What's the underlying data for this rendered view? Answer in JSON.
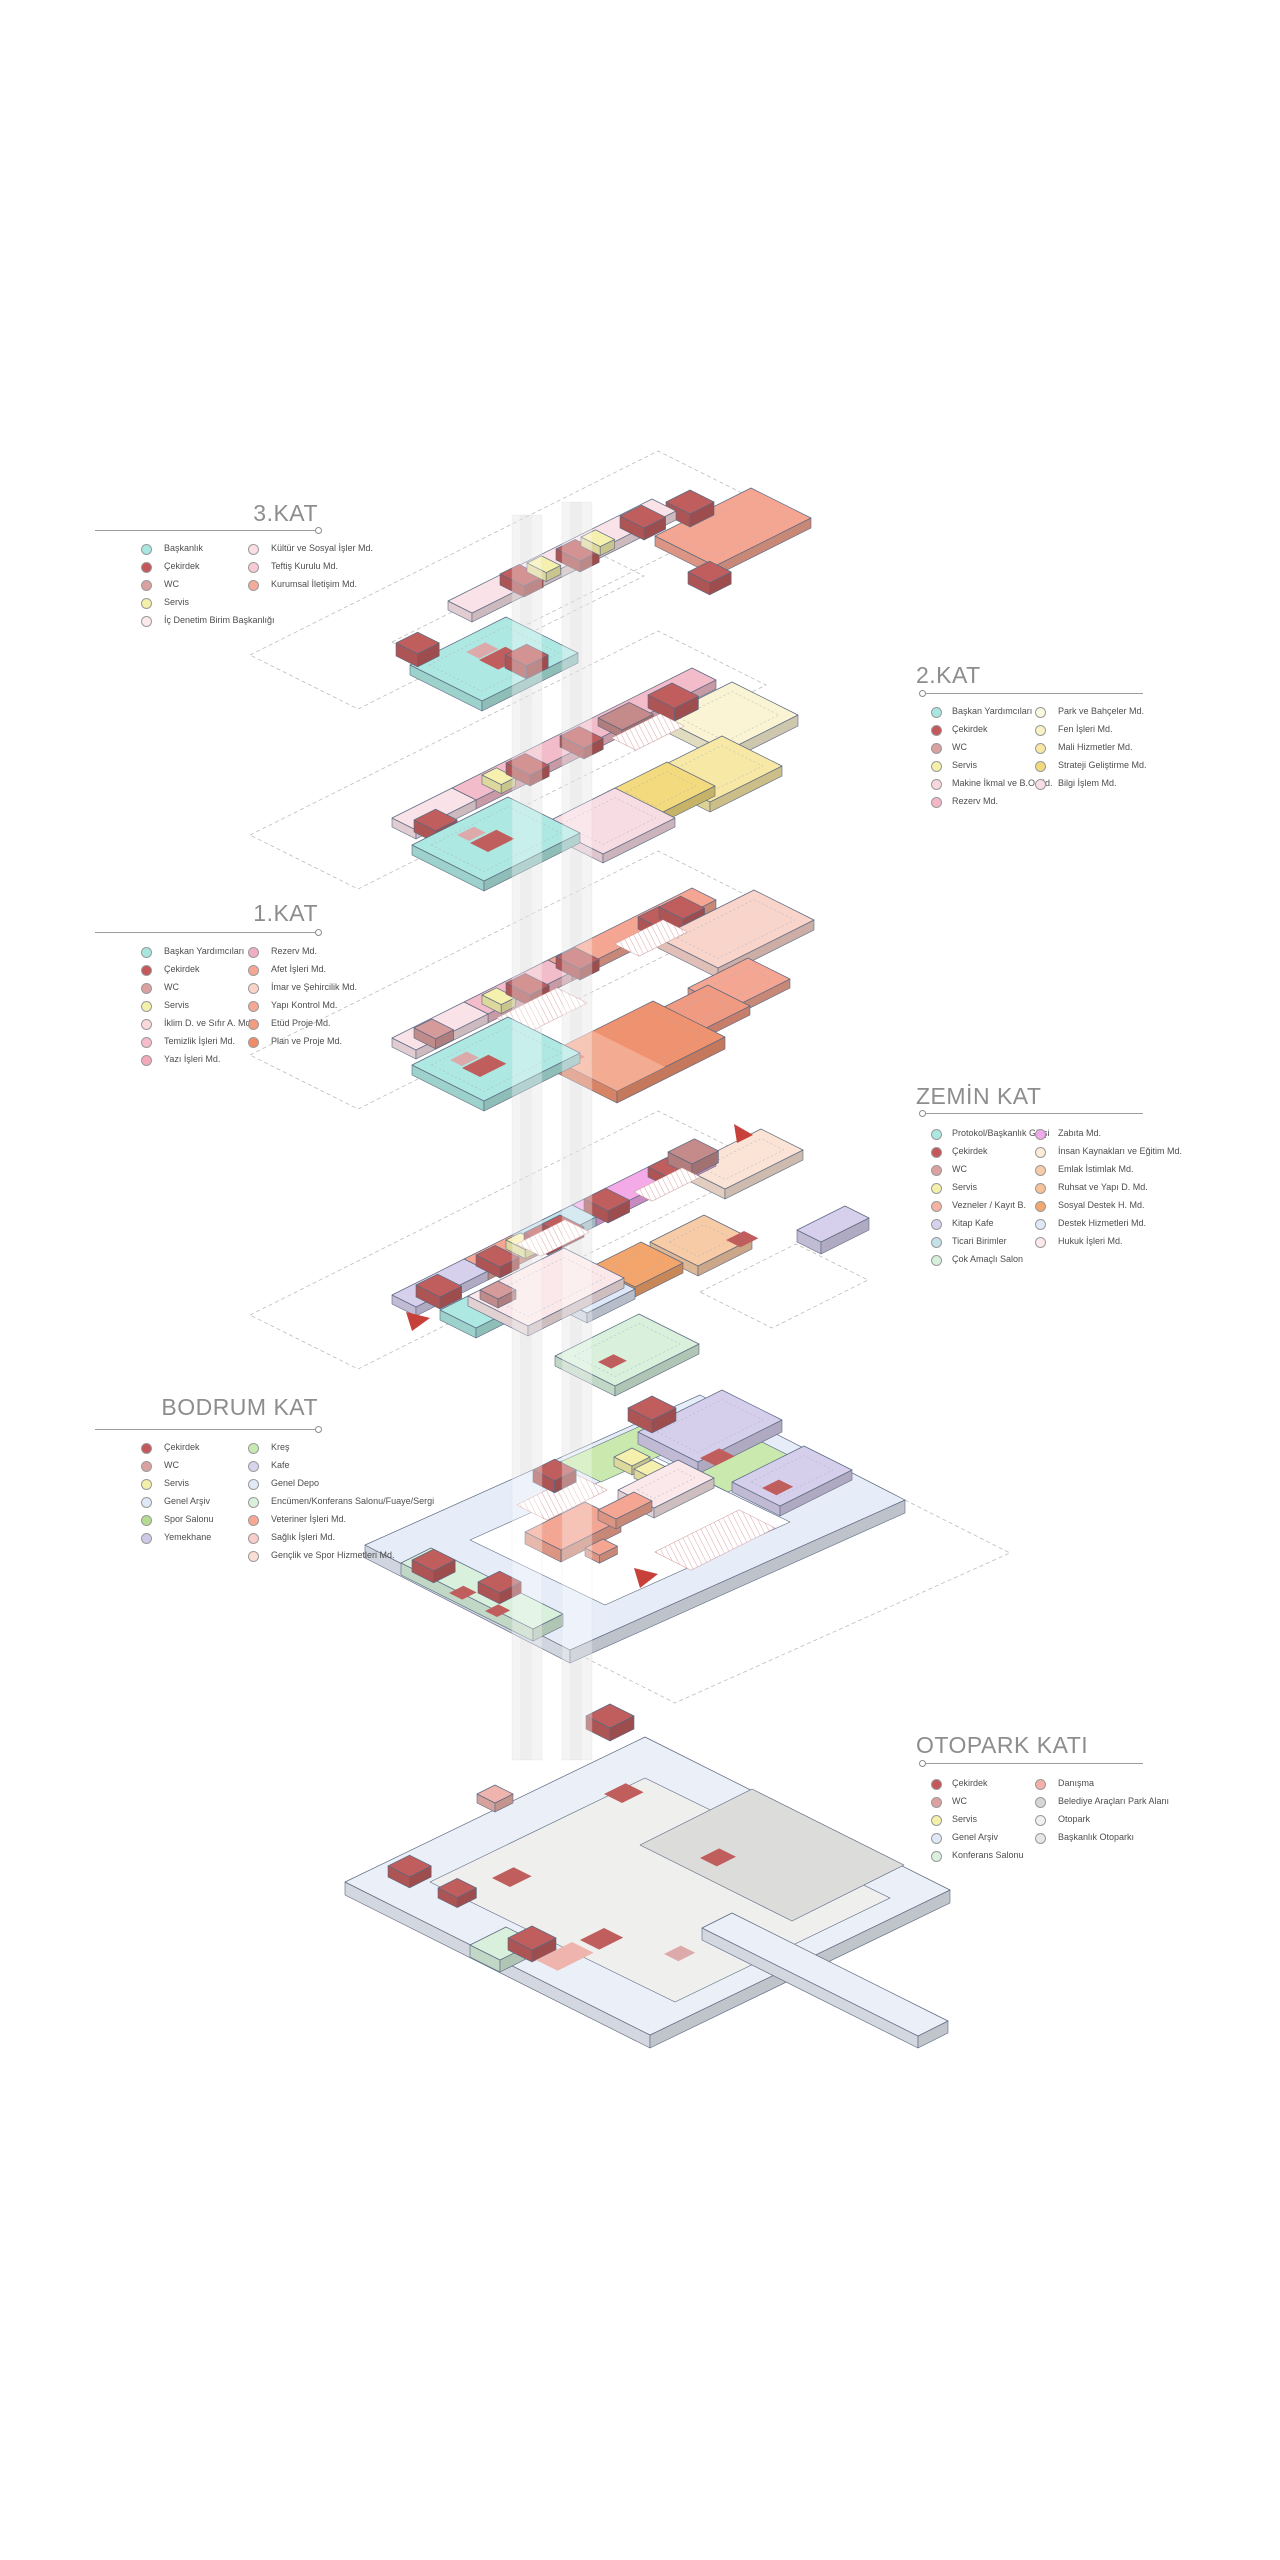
{
  "page": {
    "background": "#ffffff"
  },
  "drawing": {
    "plate_stroke": "#5b6880",
    "dash_color": "#bcbcbc",
    "shaft_color": "#e2e2e2",
    "stair_line_color": "#c9908f"
  },
  "markers": {
    "entrance_triangle_color": "#c8403a"
  },
  "palette": {
    "core": "#c05e5e",
    "wc": "#d59a9a",
    "wcflat": "#dcaaaa",
    "servis": "#f5f0ad",
    "teal": "#aee8e2",
    "palepink": "#f9e3e8",
    "pink": "#f3bcca",
    "pinkplate": "#f8dce4",
    "salmon2": "#f4a692",
    "salmon3": "#f19a82",
    "paleyellow": "#faf3d4",
    "yellow": "#f7e8a6",
    "dyellow": "#f3da7e",
    "plan": "#ef9270",
    "planlight": "#f3ab92",
    "planmark": "#e07f5c",
    "imar": "#f9d4ca",
    "lav": "#d7d0ec",
    "lav2": "#d5cfec",
    "lblue": "#c3e1eb",
    "magenta": "#f3aae6",
    "insan": "#fbe4d5",
    "emlak": "#f7cba6",
    "sosyal": "#f3a56c",
    "destek": "#dfe8f6",
    "hukukpale": "#fbe8ea",
    "mint": "#d8f0dc",
    "green1": "#c9e9ae",
    "ringblue": "#e7edf8",
    "ringblue2": "#eaeff8",
    "gray1": "#efefed",
    "gray2": "#dcdcda",
    "danis": "#eeb4ad",
    "makine": "#c58b8b",
    "white": "#ffffff"
  },
  "floors": [
    {
      "id": "kat3",
      "title": "3.KAT",
      "col1": [
        {
          "label": "Başkanlık",
          "color": "#a9e6df"
        },
        {
          "label": "Çekirdek",
          "color": "#c4575a"
        },
        {
          "label": "WC",
          "color": "#dba0a0"
        },
        {
          "label": "Servis",
          "color": "#f4efa9"
        },
        {
          "label": "İç Denetim Birim Başkanlığı",
          "color": "#fbe9ec"
        }
      ],
      "col2": [
        {
          "label": "Kültür ve Sosyal İşler Md.",
          "color": "#fbdfe4"
        },
        {
          "label": "Teftiş Kurulu Md.",
          "color": "#f9c9d4"
        },
        {
          "label": "Kurumsal İletişim Md.",
          "color": "#f6aa9b"
        }
      ]
    },
    {
      "id": "kat2",
      "title": "2.KAT",
      "col1": [
        {
          "label": "Başkan Yardımcıları",
          "color": "#a9e6df"
        },
        {
          "label": "Çekirdek",
          "color": "#c4575a"
        },
        {
          "label": "WC",
          "color": "#dba0a0"
        },
        {
          "label": "Servis",
          "color": "#f4efa9"
        },
        {
          "label": "Makine İkmal ve B.O.Md.",
          "color": "#f8d7de"
        },
        {
          "label": "Rezerv Md.",
          "color": "#f3b7c6"
        }
      ],
      "col2": [
        {
          "label": "Park ve Bahçeler Md.",
          "color": "#fbf8e0"
        },
        {
          "label": "Fen İşleri Md.",
          "color": "#f9f2c8"
        },
        {
          "label": "Mali Hizmetler Md.",
          "color": "#f7e7a5"
        },
        {
          "label": "Strateji Geliştirme Md.",
          "color": "#f2d97d"
        },
        {
          "label": "Bilgi İşlem Md.",
          "color": "#fadee5"
        }
      ]
    },
    {
      "id": "kat1",
      "title": "1.KAT",
      "col1": [
        {
          "label": "Başkan Yardımcıları",
          "color": "#a9e6df"
        },
        {
          "label": "Çekirdek",
          "color": "#c4575a"
        },
        {
          "label": "WC",
          "color": "#dba0a0"
        },
        {
          "label": "Servis",
          "color": "#f4efa9"
        },
        {
          "label": "İklim D. ve Sıfır A. Md.",
          "color": "#fbd8dd"
        },
        {
          "label": "Temizlik İşleri Md.",
          "color": "#f7bcca"
        },
        {
          "label": "Yazı İşleri Md.",
          "color": "#f4a9b9"
        }
      ],
      "col2": [
        {
          "label": "Rezerv Md.",
          "color": "#f0aec6"
        },
        {
          "label": "Afet İşleri Md.",
          "color": "#f5a791"
        },
        {
          "label": "İmar ve Şehircilik Md.",
          "color": "#fbd3c8"
        },
        {
          "label": "Yapı Kontrol Md.",
          "color": "#f5a894"
        },
        {
          "label": "Etüd Proje Md.",
          "color": "#f39b80"
        },
        {
          "label": "Plan ve Proje Md.",
          "color": "#f08d68"
        }
      ]
    },
    {
      "id": "zemin",
      "title": "ZEMİN KAT",
      "col1": [
        {
          "label": "Protokol/Başkanlık Girişi",
          "color": "#ace8e0"
        },
        {
          "label": "Çekirdek",
          "color": "#c4575a"
        },
        {
          "label": "WC",
          "color": "#dba0a0"
        },
        {
          "label": "Servis",
          "color": "#f4efa9"
        },
        {
          "label": "Vezneler / Kayıt B.",
          "color": "#f6b2a3"
        },
        {
          "label": "Kitap Kafe",
          "color": "#d8d1ed"
        },
        {
          "label": "Ticari Birimler",
          "color": "#c4e1ea"
        },
        {
          "label": "Çok Amaçlı Salon",
          "color": "#d7f0dc"
        }
      ],
      "col2": [
        {
          "label": "Zabıta Md.",
          "color": "#f2a8ec"
        },
        {
          "label": "İnsan Kaynakları ve Eğitim Md.",
          "color": "#fcecd8"
        },
        {
          "label": "Emlak İstimlak Md.",
          "color": "#f8cba8"
        },
        {
          "label": "Ruhsat ve Yapı D. Md.",
          "color": "#f7c295"
        },
        {
          "label": "Sosyal Destek H. Md.",
          "color": "#f2a76e"
        },
        {
          "label": "Destek Hizmetleri Md.",
          "color": "#dfe8f6"
        },
        {
          "label": "Hukuk İşleri Md.",
          "color": "#fbe9eb"
        }
      ]
    },
    {
      "id": "bodrum",
      "title": "BODRUM KAT",
      "col1": [
        {
          "label": "Çekirdek",
          "color": "#c4575a"
        },
        {
          "label": "WC",
          "color": "#dba0a0"
        },
        {
          "label": "Servis",
          "color": "#f4efa9"
        },
        {
          "label": "Genel Arşiv",
          "color": "#dfe8f6"
        },
        {
          "label": "Spor Salonu",
          "color": "#b5db92"
        },
        {
          "label": "Yemekhane",
          "color": "#cfc9e9"
        }
      ],
      "col2": [
        {
          "label": "Kreş",
          "color": "#c7eab2"
        },
        {
          "label": "Kafe",
          "color": "#d9d3ee"
        },
        {
          "label": "Genel Depo",
          "color": "#e2eaf7"
        },
        {
          "label": "Encümen/Konferans Salonu/Fuaye/Sergi",
          "color": "#d9f0dd"
        },
        {
          "label": "Veteriner İşleri Md.",
          "color": "#f7a894"
        },
        {
          "label": "Sağlık İşleri Md.",
          "color": "#f9cdc9"
        },
        {
          "label": "Gençlik ve Spor Hizmetleri Md.",
          "color": "#fbded6"
        }
      ]
    },
    {
      "id": "otopark",
      "title": "OTOPARK KATI",
      "col1": [
        {
          "label": "Çekirdek",
          "color": "#c4575a"
        },
        {
          "label": "WC",
          "color": "#dba0a0"
        },
        {
          "label": "Servis",
          "color": "#f4efa9"
        },
        {
          "label": "Genel Arşiv",
          "color": "#dfe8f6"
        },
        {
          "label": "Konferans Salonu",
          "color": "#d9f0dd"
        }
      ],
      "col2": [
        {
          "label": "Danışma",
          "color": "#f5b1a7"
        },
        {
          "label": "Belediye Araçları Park Alanı",
          "color": "#d7d7d5"
        },
        {
          "label": "Otopark",
          "color": "#f0f0ee"
        },
        {
          "label": "Başkanlık Otoparkı",
          "color": "#e6e6e4"
        }
      ]
    }
  ]
}
